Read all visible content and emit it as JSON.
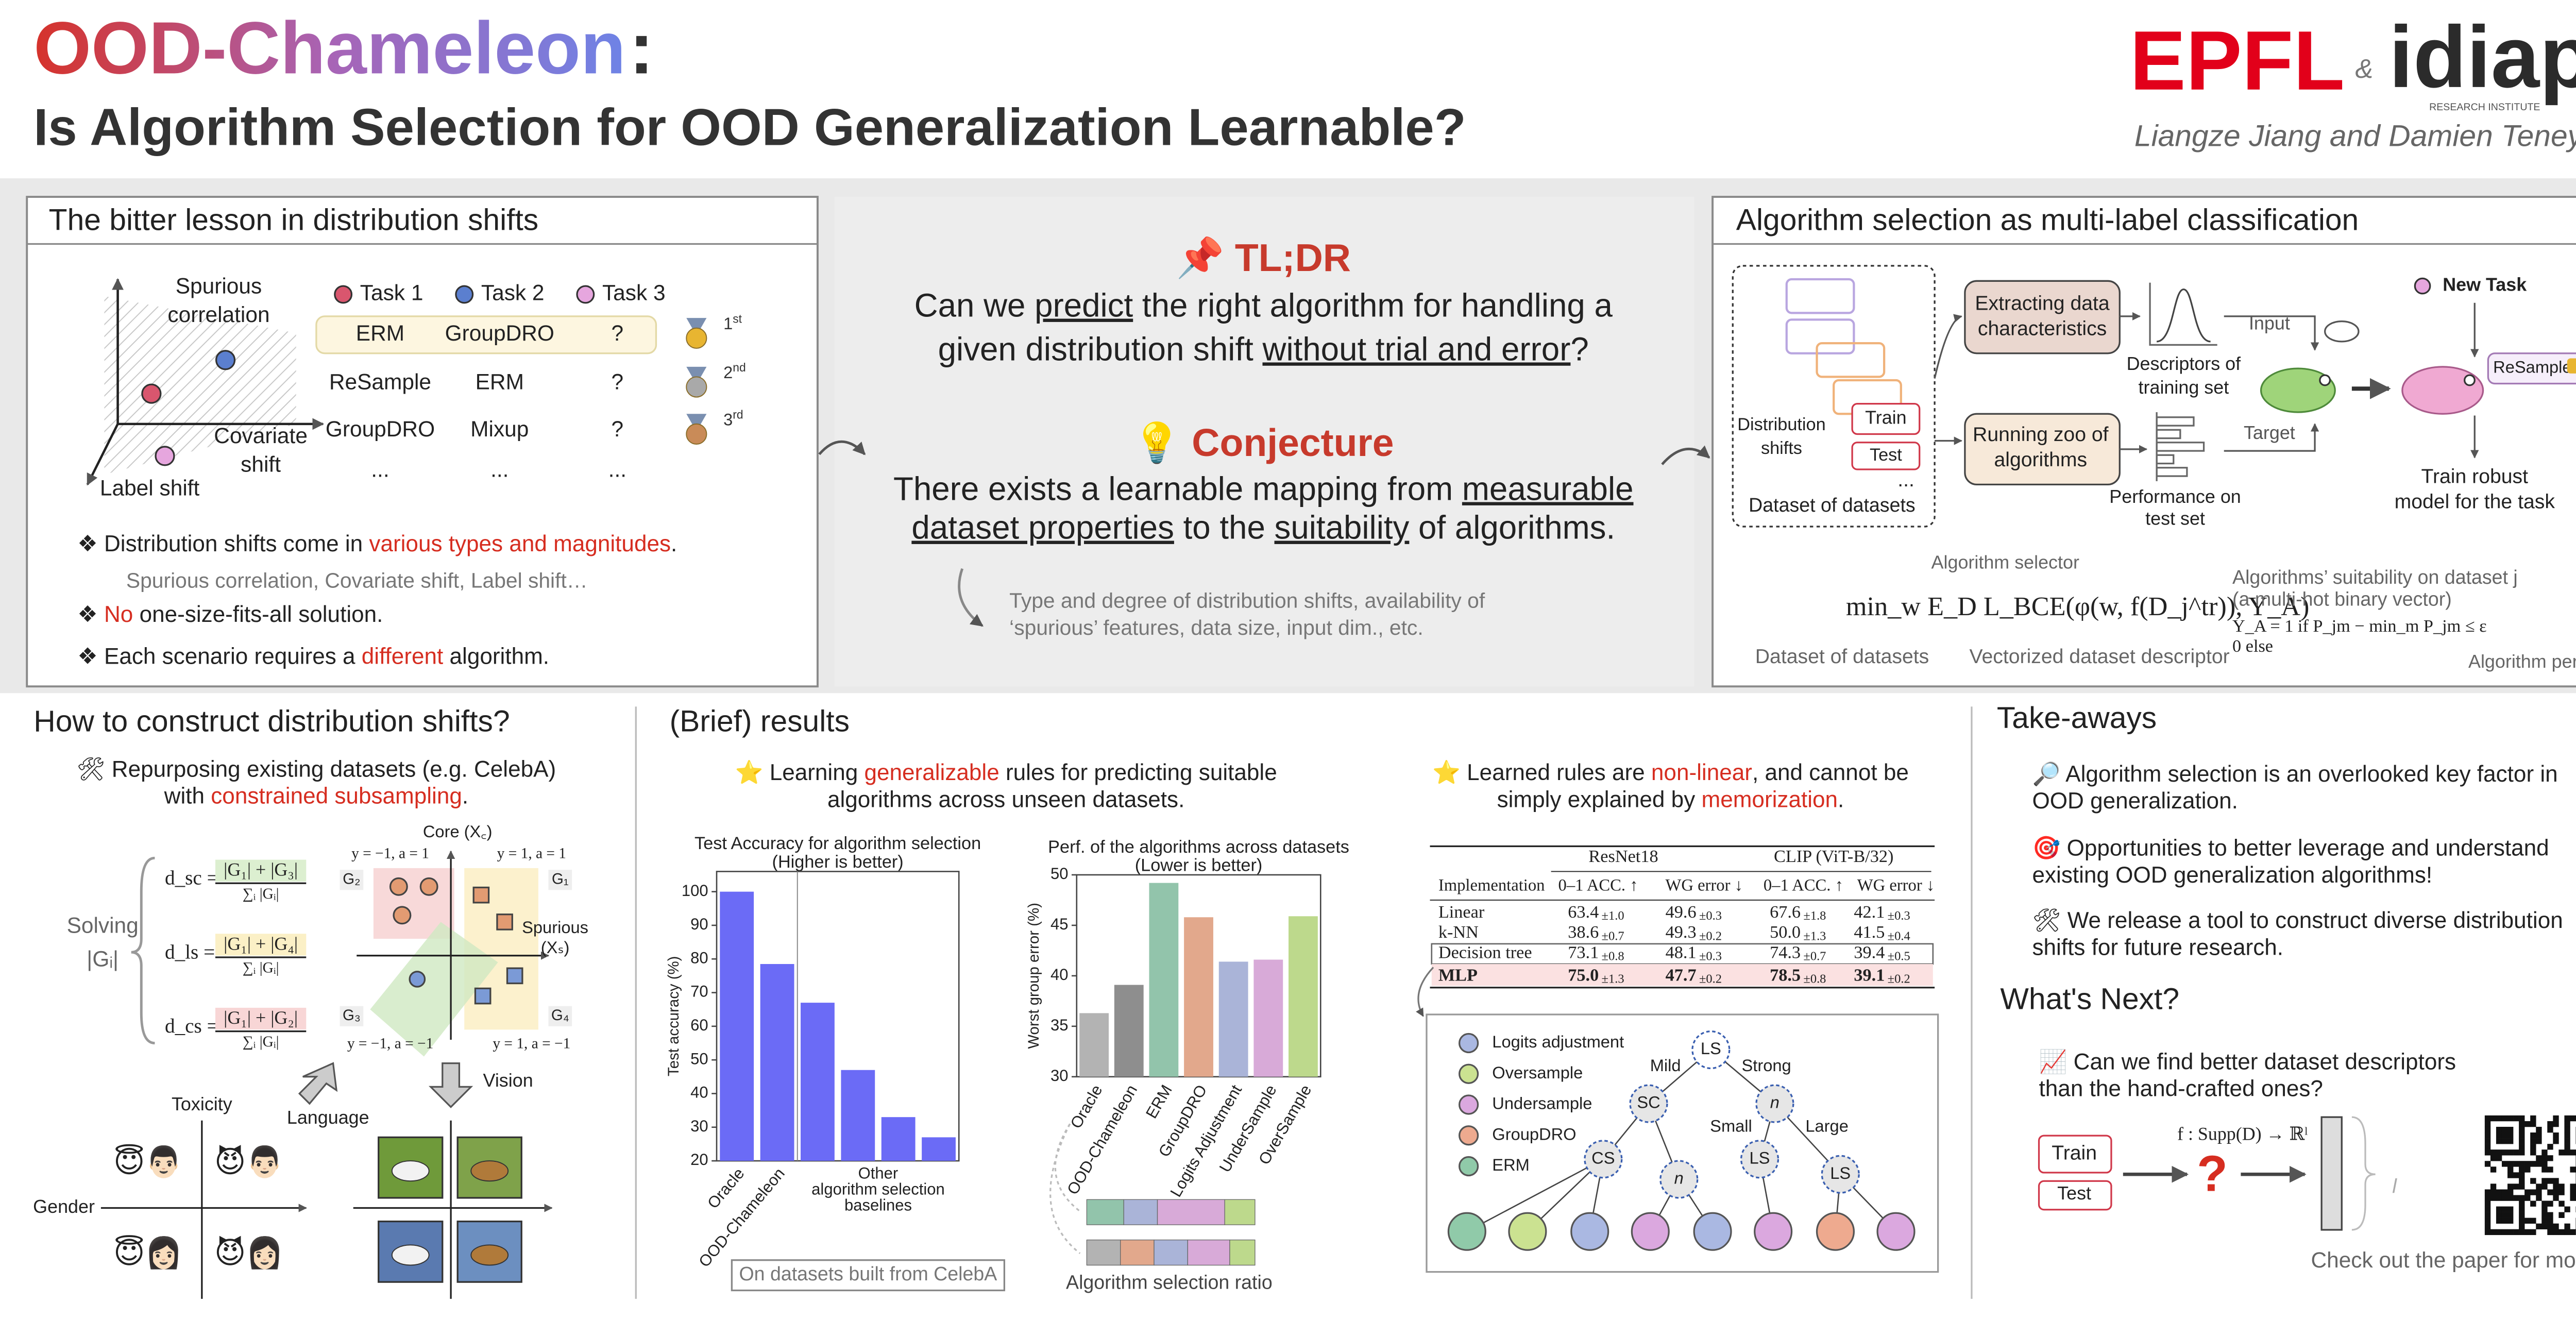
{
  "header": {
    "title": "OOD-Chameleon",
    "colon": ":",
    "subtitle": "Is Algorithm Selection for OOD Generalization Learnable?",
    "logo_left": "EPFL",
    "ampersand": "&",
    "logo_right": "idiap",
    "logo_right_tagline": "RESEARCH INSTITUTE",
    "authors": "Liangze Jiang and Damien Teney"
  },
  "bitter_lesson": {
    "title": "The bitter lesson in distribution shifts",
    "axis_vertical": [
      "Spurious",
      "correlation"
    ],
    "axis_horizontal": [
      "Covariate",
      "shift"
    ],
    "axis_diagonal": "Label shift",
    "tasks": [
      {
        "name": "Task 1",
        "color": "#d9566e"
      },
      {
        "name": "Task 2",
        "color": "#5b7fcf"
      },
      {
        "name": "Task 3",
        "color": "#e6a6de"
      }
    ],
    "ranking_rows": [
      [
        "ERM",
        "GroupDRO",
        "?"
      ],
      [
        "ReSample",
        "ERM",
        "?"
      ],
      [
        "GroupDRO",
        "Mixup",
        "?"
      ],
      [
        "...",
        "...",
        "..."
      ]
    ],
    "ranks": [
      {
        "number": "1",
        "suffix": "st"
      },
      {
        "number": "2",
        "suffix": "nd"
      },
      {
        "number": "3",
        "suffix": "rd"
      }
    ],
    "bullets": [
      [
        {
          "text": "❖ Distribution shifts come in "
        },
        {
          "text": "various types and magnitudes",
          "style": "red"
        },
        {
          "text": "."
        }
      ],
      [
        {
          "text": "❖ "
        },
        {
          "text": "No",
          "style": "red"
        },
        {
          "text": " one-size-fits-all solution."
        }
      ],
      [
        {
          "text": "❖ Each scenario requires a "
        },
        {
          "text": "different",
          "style": "red"
        },
        {
          "text": " algorithm."
        }
      ]
    ],
    "examples": "Spurious correlation, Covariate shift, Label shift…"
  },
  "tldr": {
    "heading": "📌 TL;DR",
    "question": [
      [
        {
          "text": "Can we "
        },
        {
          "text": "predict",
          "style": "underline"
        },
        {
          "text": " the right algorithm for handling a"
        }
      ],
      [
        {
          "text": "given distribution shift "
        },
        {
          "text": "without trial and error",
          "style": "underline"
        },
        {
          "text": "?"
        }
      ]
    ],
    "conjecture_heading": "💡 Conjecture",
    "conjecture": [
      [
        {
          "text": "There exists a learnable mapping from "
        },
        {
          "text": "measurable",
          "style": "underline"
        }
      ],
      [
        {
          "text": "dataset properties",
          "style": "underline"
        },
        {
          "text": " to the "
        },
        {
          "text": "suitability",
          "style": "underline"
        },
        {
          "text": " of algorithms."
        }
      ]
    ],
    "note": [
      "Type and degree of distribution shifts, availability of",
      "‘spurious’ features, data size, input dim., etc."
    ]
  },
  "selection": {
    "title": "Algorithm selection as multi-label classification",
    "shifts": [
      "Distribution",
      "shifts"
    ],
    "train": "Train",
    "test": "Test",
    "more": "...",
    "caption": "Dataset of datasets",
    "extract": [
      "Extracting data",
      "characteristics"
    ],
    "descriptors": [
      "Descriptors of",
      "training set"
    ],
    "input": "Input",
    "new_task": "New Task",
    "recommendation": "ReSample",
    "train_robust": [
      "Train robust",
      "model for the task"
    ],
    "zoo": [
      "Running zoo of",
      "algorithms"
    ],
    "performance": [
      "Performance on",
      "test set"
    ],
    "target": "Target",
    "selector": "Algorithm selector",
    "objective": "min_w E_D L_BCE(φ(w, f(D_j^tr)), Y_A)",
    "suitability": [
      "Algorithms’ suitability on dataset j",
      "(a multi-hot binary vector)"
    ],
    "label_rule": [
      "Y_A = 1   if P_jm − min_m P_jm ≤ ε",
      "        0   else"
    ],
    "annotations": [
      "Dataset of datasets",
      "Vectorized dataset descriptor",
      "Algorithm perf."
    ]
  },
  "construct": {
    "title": "How to construct distribution shifts?",
    "intro": [
      [
        {
          "text": "🛠 Repurposing existing datasets (e.g. CelebA)"
        }
      ],
      [
        {
          "text": "with "
        },
        {
          "text": "constrained subsampling",
          "style": "red"
        },
        {
          "text": "."
        }
      ]
    ],
    "solving": [
      "Solving",
      "|Gᵢ|"
    ],
    "distances": [
      {
        "lhs": "d_sc =",
        "numerator": "|G₁| + |G₃|",
        "denominator": "∑ᵢ |Gᵢ|",
        "color": "#dcefd0"
      },
      {
        "lhs": "d_ls =",
        "numerator": "|G₁| + |G₄|",
        "denominator": "∑ᵢ |Gᵢ|",
        "color": "#fbf0c6"
      },
      {
        "lhs": "d_cs =",
        "numerator": "|G₁| + |G₂|",
        "denominator": "∑ᵢ |Gᵢ|",
        "color": "#f8d6d6"
      }
    ],
    "core": "Core (X꜀)",
    "spurious": [
      "Spurious",
      "(Xₛ)"
    ],
    "corners": [
      "y = −1, a = 1",
      "y = 1, a = 1",
      "y = −1, a = −1",
      "y = 1, a = −1"
    ],
    "groups": [
      "G₂",
      "G₁",
      "G₃",
      "G₄"
    ],
    "language": "Language",
    "vision": "Vision",
    "toxicity": "Toxicity",
    "gender": "Gender",
    "emojis": [
      "😇👨🏻",
      "😈👨🏻",
      "😇👩🏻",
      "😈👩🏻"
    ]
  },
  "results": {
    "title": "(Brief) results",
    "claim": [
      [
        {
          "text": "⭐ Learning "
        },
        {
          "text": "generalizable",
          "style": "red"
        },
        {
          "text": " rules for predicting suitable"
        }
      ],
      [
        {
          "text": "algorithms across unseen datasets."
        }
      ]
    ],
    "ratio_label": "Algorithm selection ratio",
    "source": "On datasets built from CelebA"
  },
  "chart_data": [
    {
      "type": "bar",
      "title": "Test Accuracy for algorithm selection",
      "subtitle": "(Higher is better)",
      "y_label": "Test accuracy (%)",
      "categories": [
        "Oracle",
        "OOD-Chameleon",
        null,
        null,
        null,
        null
      ],
      "group_label": [
        "Other",
        "algorithm selection",
        "baselines"
      ],
      "values": [
        100,
        78.5,
        67,
        47,
        33,
        27
      ],
      "color": "#6b6bf6",
      "ylim": [
        20,
        106
      ],
      "yticks": [
        20,
        30,
        40,
        50,
        60,
        70,
        80,
        90,
        100
      ],
      "grid": false
    },
    {
      "type": "bar",
      "title": "Perf. of the algorithms across datasets",
      "subtitle": "(Lower is better)",
      "y_label": "Worst group error (%)",
      "categories": [
        "Oracle",
        "OOD-Chameleon",
        "ERM",
        "GroupDRO",
        "Logits Adjustment",
        "UnderSample",
        "OverSample"
      ],
      "values": [
        36.3,
        39.1,
        49.2,
        45.8,
        41.4,
        41.6,
        45.9
      ],
      "colors": [
        "#b3b3b3",
        "#8e8e8e",
        "#92c4ab",
        "#e2a88c",
        "#aab4d8",
        "#d8aad8",
        "#bdd98c"
      ],
      "ylim": [
        30,
        50
      ],
      "yticks": [
        30,
        35,
        40,
        45,
        50
      ],
      "grid": false
    }
  ],
  "memorization": {
    "claim": [
      [
        {
          "text": "⭐ Learned rules are "
        },
        {
          "text": "non-linear",
          "style": "red"
        },
        {
          "text": ", and cannot be"
        }
      ],
      [
        {
          "text": "simply explained by "
        },
        {
          "text": "memorization",
          "style": "red"
        },
        {
          "text": "."
        }
      ]
    ],
    "table": {
      "groups": [
        "ResNet18",
        "CLIP (ViT-B/32)"
      ],
      "columns": [
        "Implementation",
        "0–1 ACC. ↑",
        "WG error ↓",
        "0–1 ACC. ↑",
        "WG error ↓"
      ],
      "rows": [
        {
          "name": "Linear",
          "cells": [
            {
              "mean": "63.4",
              "std": "±1.0"
            },
            {
              "mean": "49.6",
              "std": "±0.3"
            },
            {
              "mean": "67.6",
              "std": "±1.8"
            },
            {
              "mean": "42.1",
              "std": "±0.3"
            }
          ]
        },
        {
          "name": "k-NN",
          "cells": [
            {
              "mean": "38.6",
              "std": "±0.7"
            },
            {
              "mean": "49.3",
              "std": "±0.2"
            },
            {
              "mean": "50.0",
              "std": "±1.3"
            },
            {
              "mean": "41.5",
              "std": "±0.4"
            }
          ]
        },
        {
          "name": "Decision tree",
          "cells": [
            {
              "mean": "73.1",
              "std": "±0.8"
            },
            {
              "mean": "48.1",
              "std": "±0.3"
            },
            {
              "mean": "74.3",
              "std": "±0.7"
            },
            {
              "mean": "39.4",
              "std": "±0.5"
            }
          ]
        },
        {
          "name": "MLP",
          "cells": [
            {
              "mean": "75.0",
              "std": "±1.3"
            },
            {
              "mean": "47.7",
              "std": "±0.2"
            },
            {
              "mean": "78.5",
              "std": "±0.8"
            },
            {
              "mean": "39.1",
              "std": "±0.2"
            }
          ]
        }
      ]
    },
    "tree": {
      "legend": [
        {
          "name": "Logits adjustment",
          "color": "#aab8e2"
        },
        {
          "name": "Oversample",
          "color": "#cbe291"
        },
        {
          "name": "Undersample",
          "color": "#dba8df"
        },
        {
          "name": "GroupDRO",
          "color": "#eeaa8f"
        },
        {
          "name": "ERM",
          "color": "#90caa9"
        }
      ],
      "nodes": [
        "LS",
        "SC",
        "n",
        "CS",
        "n",
        "LS",
        "LS"
      ],
      "edges": [
        "Mild",
        "Strong",
        "Small",
        "Large"
      ]
    }
  },
  "takeaways": {
    "title": "Take-aways",
    "items": [
      [
        "🔎 Algorithm selection is an overlooked key factor in",
        "OOD generalization."
      ],
      [
        "🎯 Opportunities to better leverage and understand",
        "existing OOD generalization algorithms!"
      ],
      [
        "🛠 We release a tool to construct diverse distribution",
        "shifts for future research."
      ]
    ],
    "next_title": "What's Next?",
    "next": [
      "📈 Can we find better dataset descriptors",
      "than the hand-crafted ones?"
    ],
    "train": "Train",
    "test": "Test",
    "mapping": "f : Supp(D) → ℝˡ",
    "unknown": "?",
    "dim": "l",
    "cta": "Check out the paper for more!"
  }
}
